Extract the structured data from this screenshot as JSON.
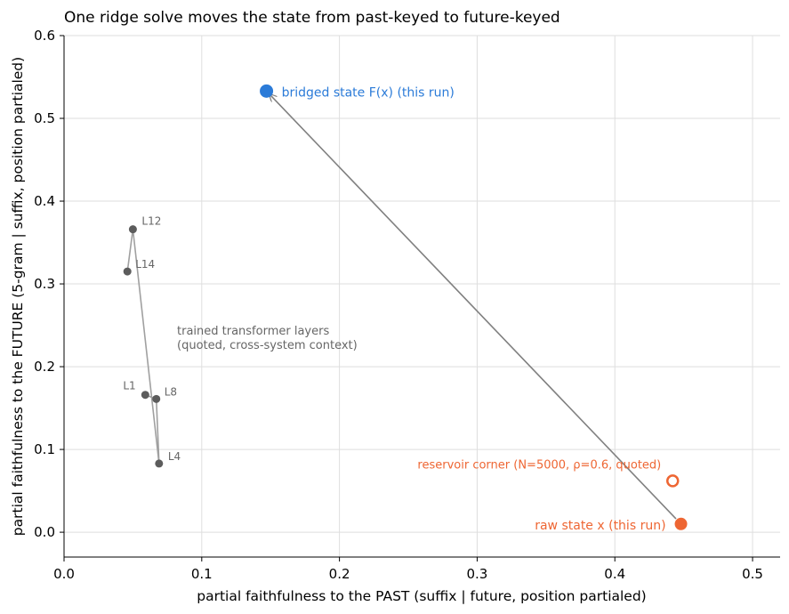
{
  "chart_data": {
    "type": "scatter",
    "title": "One ridge solve moves the state from past-keyed to future-keyed",
    "xlabel": "partial faithfulness to the PAST  (suffix | future, position partialed)",
    "ylabel": "partial faithfulness to the FUTURE  (5-gram | suffix, position partialed)",
    "xlim": [
      0.0,
      0.52
    ],
    "ylim": [
      -0.03,
      0.6
    ],
    "xticks": [
      0.0,
      0.1,
      0.2,
      0.3,
      0.4,
      0.5
    ],
    "xtick_labels": [
      "0.0",
      "0.1",
      "0.2",
      "0.3",
      "0.4",
      "0.5"
    ],
    "yticks": [
      0.0,
      0.1,
      0.2,
      0.3,
      0.4,
      0.5,
      0.6
    ],
    "ytick_labels": [
      "0.0",
      "0.1",
      "0.2",
      "0.3",
      "0.4",
      "0.5",
      "0.6"
    ],
    "grid": true,
    "colors": {
      "grid": "#dedede",
      "axis": "#000000",
      "layer_points": "#5c5c5c",
      "layer_line": "#a0a0a0",
      "layer_text": "#666666",
      "raw": "#ee6633",
      "bridged": "#2b7bd8",
      "arrow": "#808080"
    },
    "layers": {
      "annotation_lines": [
        "trained transformer layers",
        "(quoted, cross-system context)"
      ],
      "points": [
        {
          "label": "L1",
          "x": 0.059,
          "y": 0.166
        },
        {
          "label": "L4",
          "x": 0.069,
          "y": 0.083
        },
        {
          "label": "L8",
          "x": 0.067,
          "y": 0.161
        },
        {
          "label": "L12",
          "x": 0.05,
          "y": 0.366
        },
        {
          "label": "L14",
          "x": 0.046,
          "y": 0.315
        }
      ],
      "path_order": [
        "L14",
        "L12",
        "L4",
        "L8",
        "L1"
      ]
    },
    "raw_state": {
      "label": "raw state x (this run)",
      "x": 0.448,
      "y": 0.01
    },
    "bridged_state": {
      "label": "bridged state F(x) (this run)",
      "x": 0.147,
      "y": 0.533
    },
    "reservoir_corner": {
      "label": "reservoir corner (N=5000, ρ=0.6, quoted)",
      "x": 0.442,
      "y": 0.062
    }
  }
}
